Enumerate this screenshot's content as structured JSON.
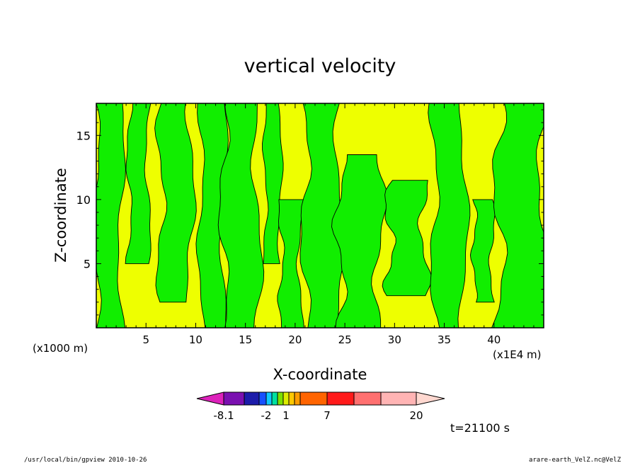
{
  "chart_data": {
    "type": "heatmap",
    "title": "vertical velocity",
    "xlabel": "X-coordinate",
    "ylabel": "Z-coordinate",
    "x_unit_left": "(x1000 m)",
    "x_unit_right": "(x1E4 m)",
    "xlim": [
      0,
      45
    ],
    "ylim": [
      0,
      17.5
    ],
    "x_ticks": [
      5,
      10,
      15,
      20,
      25,
      30,
      35,
      40
    ],
    "y_ticks": [
      5,
      10,
      15
    ],
    "colorbar": {
      "labels": [
        "-8.1",
        "-2",
        "1",
        "7",
        "20"
      ],
      "colors": [
        "#dd22bb",
        "#7a10b0",
        "#1c1caa",
        "#1750ff",
        "#10c8ff",
        "#00e0a0",
        "#7ce000",
        "#dcec00",
        "#ffc800",
        "#ff9c00",
        "#ff6400",
        "#ff1a1a",
        "#ff7070",
        "#ffb4b4",
        "#ffd8d0"
      ]
    },
    "field_colors": {
      "negative": "#11ee00",
      "positive": "#eeff00"
    },
    "negative_bands": [
      {
        "x": [
          0,
          2.5
        ],
        "z": [
          0,
          17.5
        ]
      },
      {
        "x": [
          3.3,
          5.2
        ],
        "z": [
          5,
          17.5
        ]
      },
      {
        "x": [
          6.5,
          9.5
        ],
        "z": [
          2,
          17.5
        ]
      },
      {
        "x": [
          10.5,
          12.8
        ],
        "z": [
          0,
          17.5
        ]
      },
      {
        "x": [
          12.8,
          16.2
        ],
        "z": [
          0,
          17.5
        ]
      },
      {
        "x": [
          17,
          18.5
        ],
        "z": [
          5,
          17.5
        ]
      },
      {
        "x": [
          18.6,
          20.5
        ],
        "z": [
          0,
          10
        ]
      },
      {
        "x": [
          21,
          24.5
        ],
        "z": [
          0,
          17.5
        ]
      },
      {
        "x": [
          24.5,
          28.5
        ],
        "z": [
          0,
          13.5
        ]
      },
      {
        "x": [
          29.5,
          33
        ],
        "z": [
          2.5,
          11.5
        ]
      },
      {
        "x": [
          34,
          37
        ],
        "z": [
          0,
          17.5
        ]
      },
      {
        "x": [
          38,
          39.8
        ],
        "z": [
          2,
          10
        ]
      },
      {
        "x": [
          40.5,
          45
        ],
        "z": [
          0,
          17.5
        ]
      }
    ],
    "time_label": "t=21100 s"
  },
  "footer": {
    "left": "/usr/local/bin/gpview  2010-10-26",
    "right": "arare-earth_VelZ.nc@VelZ"
  }
}
